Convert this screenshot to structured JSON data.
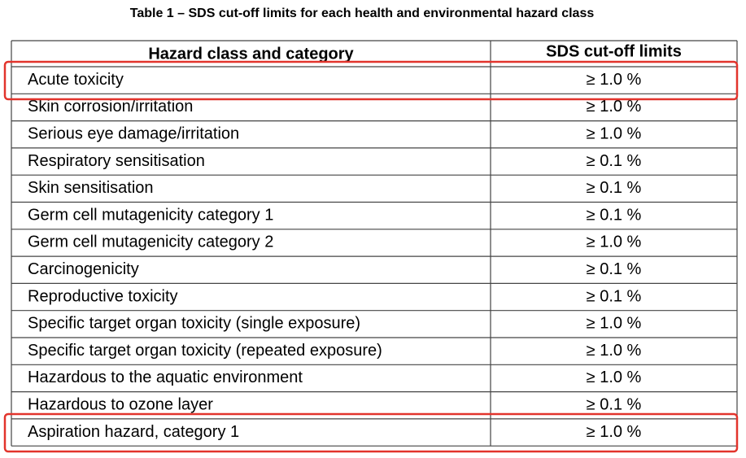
{
  "title": "Table 1 – SDS cut-off limits for each health and environmental hazard class",
  "table": {
    "header": [
      "Hazard class and category",
      "SDS cut-off limits"
    ],
    "rows": [
      [
        "Acute toxicity",
        "≥ 1.0 %"
      ],
      [
        "Skin corrosion/irritation",
        "≥ 1.0 %"
      ],
      [
        "Serious eye damage/irritation",
        "≥ 1.0 %"
      ],
      [
        "Respiratory sensitisation",
        "≥ 0.1 %"
      ],
      [
        "Skin sensitisation",
        "≥ 0.1 %"
      ],
      [
        "Germ cell mutagenicity category 1",
        "≥ 0.1 %"
      ],
      [
        "Germ cell mutagenicity category 2",
        "≥ 1.0 %"
      ],
      [
        "Carcinogenicity",
        "≥ 0.1 %"
      ],
      [
        "Reproductive toxicity",
        "≥ 0.1 %"
      ],
      [
        "Specific target organ toxicity (single exposure)",
        "≥ 1.0 %"
      ],
      [
        "Specific target organ toxicity (repeated exposure)",
        "≥ 1.0 %"
      ],
      [
        "Hazardous to the aquatic environment",
        "≥ 1.0 %"
      ],
      [
        "Hazardous to ozone layer",
        "≥ 0.1 %"
      ],
      [
        "Aspiration hazard, category 1",
        "≥ 1.0 %"
      ]
    ]
  }
}
